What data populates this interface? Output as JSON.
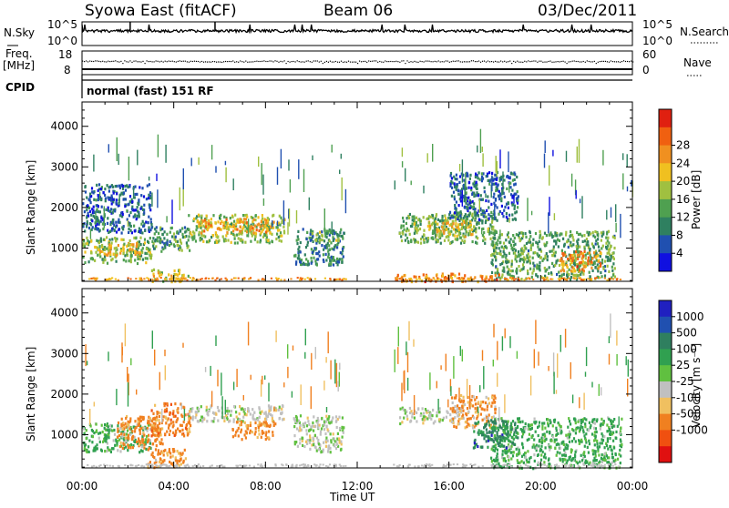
{
  "header": {
    "station": "Syowa East (fitACF)",
    "beam": "Beam 06",
    "date": "03/Dec/2011"
  },
  "top_panels": {
    "nsky_label": "N.Sky",
    "nsky_ticks": [
      "10^5",
      "10^0"
    ],
    "nsearch_label": "N.Search",
    "nsearch_ticks": [
      "10^5",
      "10^0"
    ],
    "freq_label_line1": "Freq.",
    "freq_label_line2": "[MHz]",
    "freq_ticks": [
      "18",
      "8"
    ],
    "nave_label": "Nave",
    "nave_ticks": [
      "60",
      "0"
    ],
    "cpid_label": "CPID",
    "cpid_text": "normal (fast) 151 RF"
  },
  "x_axis": {
    "label": "Time UT",
    "ticks": [
      "00:00",
      "04:00",
      "08:00",
      "12:00",
      "16:00",
      "20:00",
      "00:00"
    ]
  },
  "chart_data": [
    {
      "type": "heatmap",
      "name": "power",
      "ylabel": "Slant Range [km]",
      "xlim": [
        0,
        24
      ],
      "ylim": [
        180,
        4600
      ],
      "yticks": [
        1000,
        2000,
        3000,
        4000
      ],
      "colorbar": {
        "label": "Power [dB]",
        "range": [
          0,
          32
        ],
        "ticks": [
          4,
          8,
          12,
          16,
          20,
          24,
          28
        ],
        "colors": [
          "#1010e0",
          "#2050b0",
          "#2f8060",
          "#4fa050",
          "#a0c040",
          "#f0c020",
          "#f09020",
          "#f06010",
          "#e02010"
        ]
      },
      "regions": [
        {
          "t0": 0.0,
          "t1": 3.0,
          "r0": 650,
          "r1": 1300,
          "value": 14
        },
        {
          "t0": 0.5,
          "t1": 2.5,
          "r0": 850,
          "r1": 1150,
          "value": 20
        },
        {
          "t0": 3.0,
          "t1": 4.7,
          "r0": 950,
          "r1": 1550,
          "value": 11
        },
        {
          "t0": 4.6,
          "t1": 8.8,
          "r0": 1150,
          "r1": 1850,
          "value": 15
        },
        {
          "t0": 5.0,
          "t1": 8.4,
          "r0": 1400,
          "r1": 1750,
          "value": 22
        },
        {
          "t0": 3.0,
          "t1": 4.6,
          "r0": 200,
          "r1": 500,
          "value": 18
        },
        {
          "t0": 9.2,
          "t1": 11.4,
          "r0": 600,
          "r1": 1500,
          "value": 9
        },
        {
          "t0": 10.0,
          "t1": 11.2,
          "r0": 1200,
          "r1": 1450,
          "value": 14
        },
        {
          "t0": 13.8,
          "t1": 18.0,
          "r0": 1150,
          "r1": 1900,
          "value": 13
        },
        {
          "t0": 15.0,
          "t1": 17.0,
          "r0": 1300,
          "r1": 1700,
          "value": 19
        },
        {
          "t0": 17.8,
          "t1": 23.2,
          "r0": 250,
          "r1": 1450,
          "value": 12
        },
        {
          "t0": 20.8,
          "t1": 22.6,
          "r0": 450,
          "r1": 950,
          "value": 24
        },
        {
          "t0": 13.6,
          "t1": 18.2,
          "r0": 200,
          "r1": 400,
          "value": 24
        },
        {
          "t0": 16.0,
          "t1": 19.0,
          "r0": 1700,
          "r1": 2900,
          "value": 7
        },
        {
          "t0": 0.0,
          "t1": 3.0,
          "r0": 1400,
          "r1": 2600,
          "value": 6
        }
      ]
    },
    {
      "type": "heatmap",
      "name": "velocity",
      "ylabel": "Slant Range [km]",
      "xlim": [
        0,
        24
      ],
      "ylim": [
        180,
        4600
      ],
      "yticks": [
        1000,
        2000,
        3000,
        4000
      ],
      "colorbar": {
        "label": "Velocity [m s⁻¹]",
        "range": [
          -1500,
          1500
        ],
        "ticks": [
          "1000",
          "500",
          "100",
          "25",
          "-25",
          "-100",
          "-500",
          "-1000"
        ],
        "colors": [
          "#e01010",
          "#f05010",
          "#f08020",
          "#f0c060",
          "#c0c0c0",
          "#60c040",
          "#30a050",
          "#2f7f5f",
          "#2050b0",
          "#2020c0"
        ]
      },
      "regions": [
        {
          "t0": 0.0,
          "t1": 3.0,
          "r0": 600,
          "r1": 1300,
          "value": 120
        },
        {
          "t0": 1.5,
          "t1": 3.5,
          "r0": 700,
          "r1": 1500,
          "value": -200
        },
        {
          "t0": 3.0,
          "t1": 4.7,
          "r0": 1000,
          "r1": 1800,
          "value": -300
        },
        {
          "t0": 2.8,
          "t1": 4.5,
          "r0": 200,
          "r1": 700,
          "value": -150
        },
        {
          "t0": 4.6,
          "t1": 8.8,
          "r0": 1350,
          "r1": 1750,
          "value": 0
        },
        {
          "t0": 6.5,
          "t1": 8.4,
          "r0": 900,
          "r1": 1350,
          "value": -250
        },
        {
          "t0": 9.2,
          "t1": 11.4,
          "r0": 600,
          "r1": 1500,
          "value": 10
        },
        {
          "t0": 13.8,
          "t1": 16.5,
          "r0": 1300,
          "r1": 1700,
          "value": 5
        },
        {
          "t0": 16.0,
          "t1": 18.0,
          "r0": 1200,
          "r1": 2000,
          "value": -120
        },
        {
          "t0": 17.8,
          "t1": 23.5,
          "r0": 200,
          "r1": 1450,
          "value": 150
        },
        {
          "t0": 17.0,
          "t1": 19.0,
          "r0": 700,
          "r1": 1400,
          "value": 600
        }
      ]
    }
  ]
}
